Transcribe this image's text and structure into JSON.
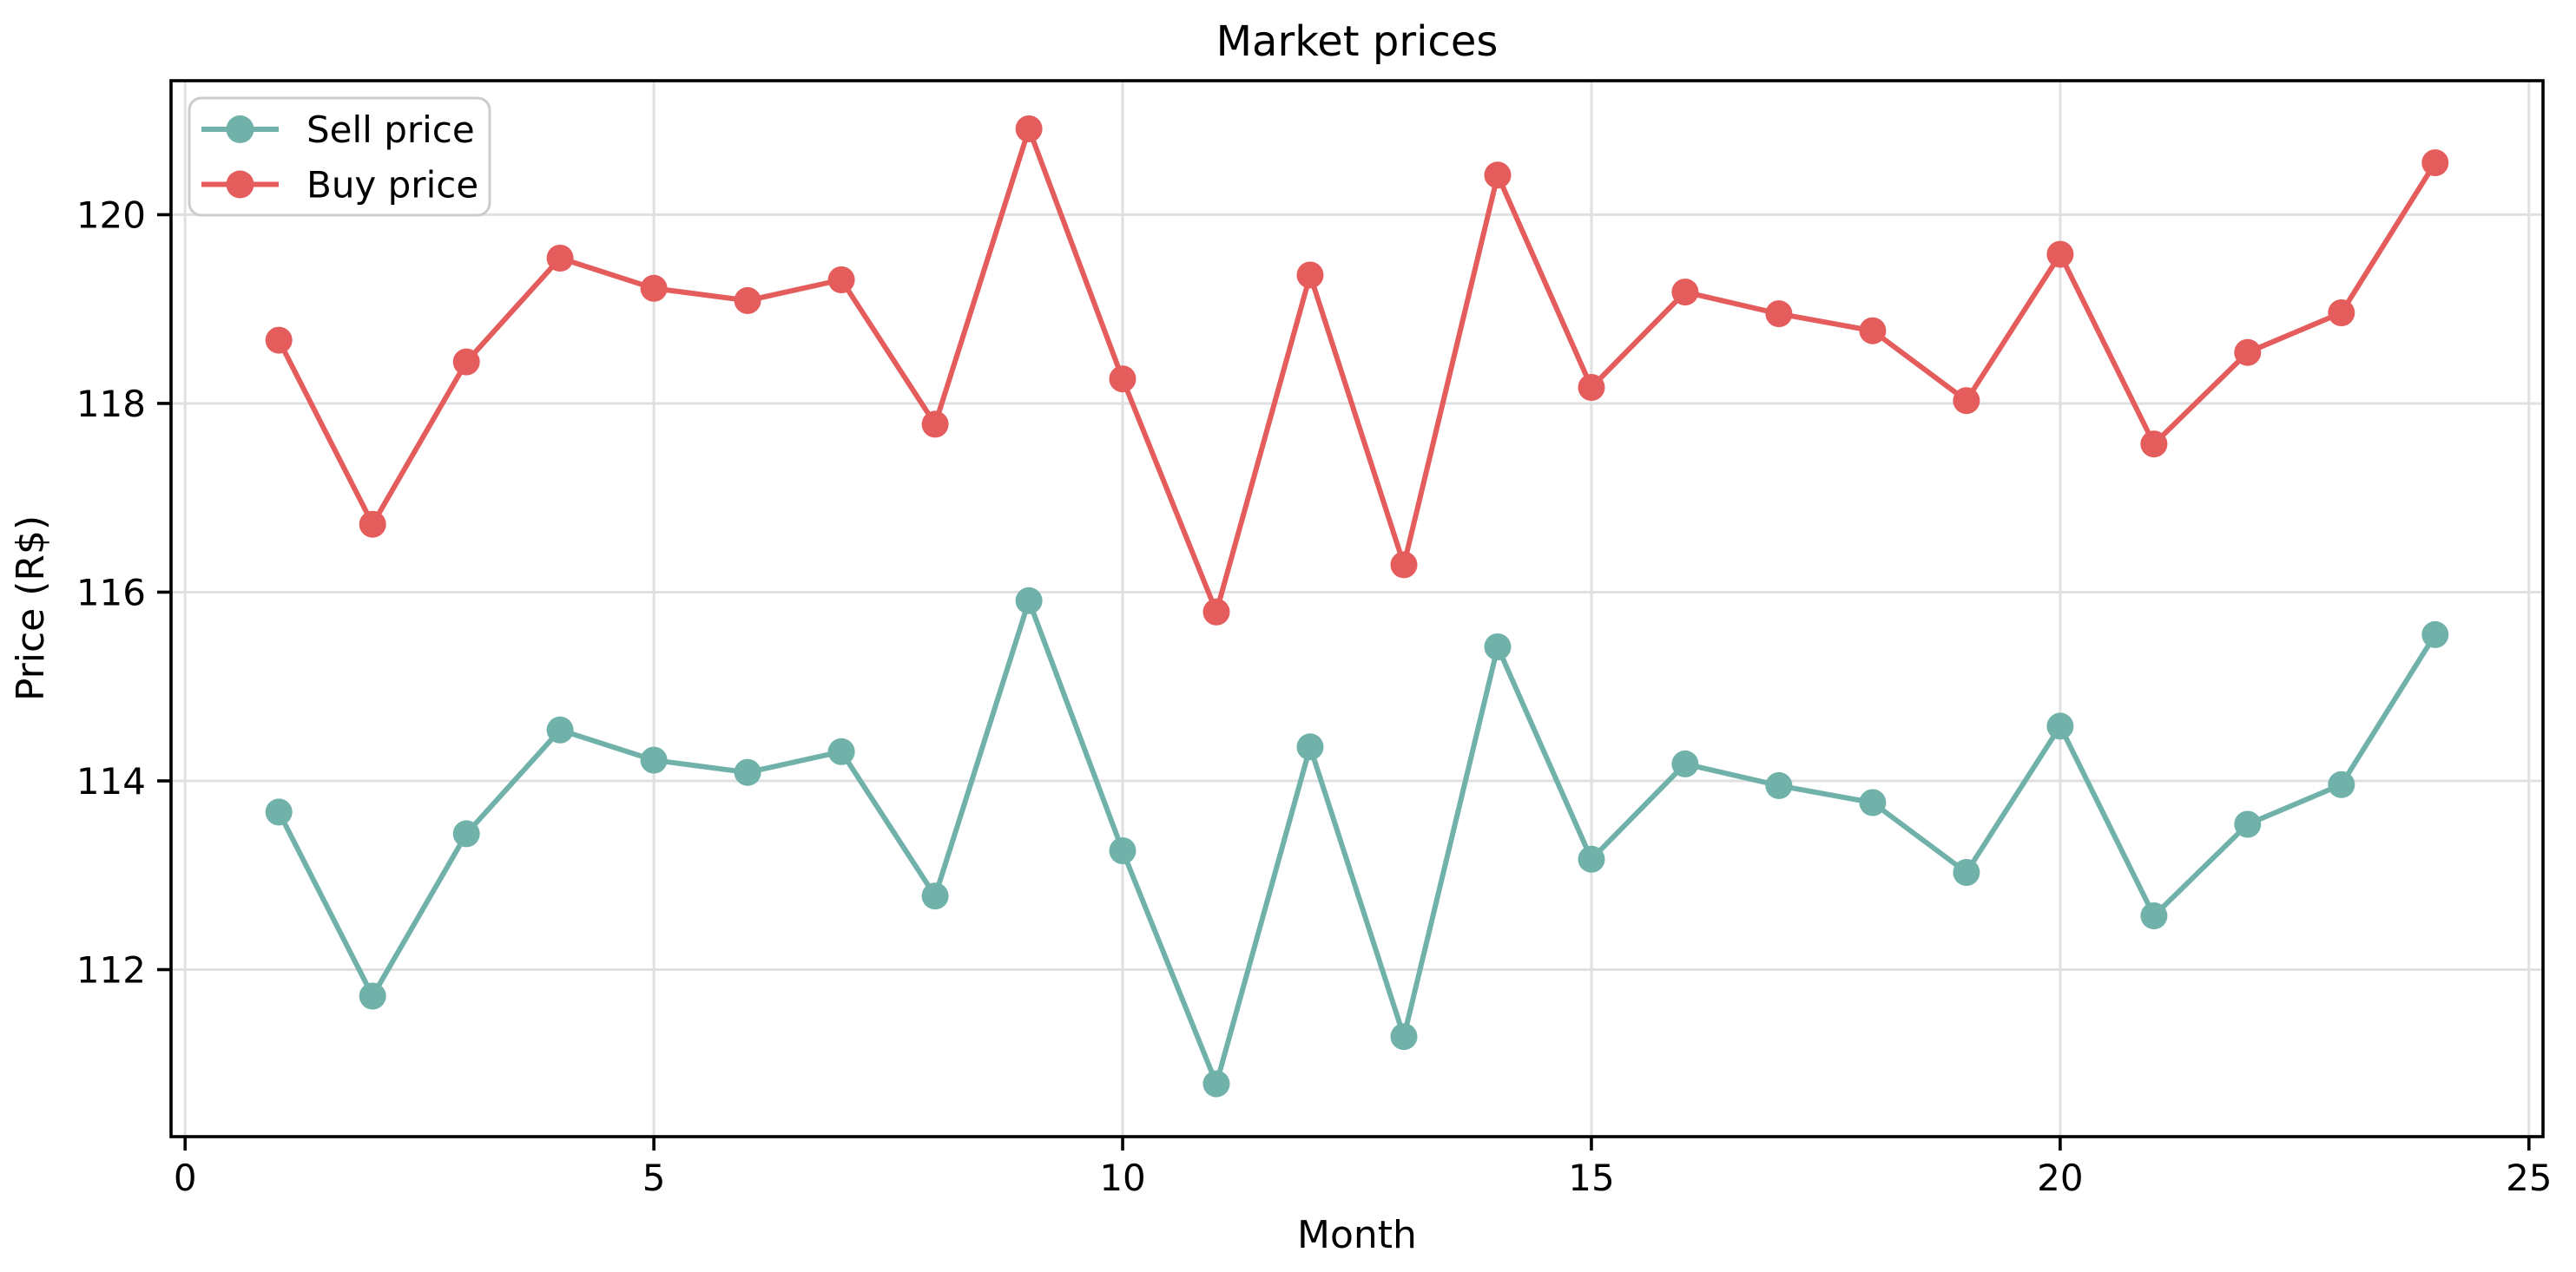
{
  "chart_data": {
    "type": "line",
    "title": "Market prices",
    "xlabel": "Month",
    "ylabel": "Price (R$)",
    "x": [
      1,
      2,
      3,
      4,
      5,
      6,
      7,
      8,
      9,
      10,
      11,
      12,
      13,
      14,
      15,
      16,
      17,
      18,
      19,
      20,
      21,
      22,
      23,
      24
    ],
    "series": [
      {
        "name": "Sell price",
        "color": "#70b2aa",
        "values": [
          113.67,
          111.72,
          113.44,
          114.54,
          114.22,
          114.09,
          114.31,
          112.78,
          115.91,
          113.26,
          110.79,
          114.36,
          111.29,
          115.42,
          113.17,
          114.18,
          113.95,
          113.77,
          113.03,
          114.58,
          112.57,
          113.54,
          113.96,
          115.55
        ]
      },
      {
        "name": "Buy price",
        "color": "#e45c5c",
        "values": [
          118.67,
          116.72,
          118.44,
          119.54,
          119.22,
          119.09,
          119.31,
          117.78,
          120.91,
          118.26,
          115.79,
          119.36,
          116.29,
          120.42,
          118.17,
          119.18,
          118.95,
          118.77,
          118.03,
          119.58,
          117.57,
          118.54,
          118.96,
          120.55
        ]
      }
    ],
    "xticks": [
      0,
      5,
      10,
      15,
      20,
      25
    ],
    "yticks": [
      112,
      114,
      116,
      118,
      120
    ],
    "xlim": [
      -0.15,
      25.15
    ],
    "ylim": [
      110.23,
      121.42
    ],
    "grid": true,
    "legend_position": "upper-left",
    "colors": {
      "grid": "#e0e0e0",
      "spine": "#000000",
      "background": "#ffffff"
    }
  }
}
